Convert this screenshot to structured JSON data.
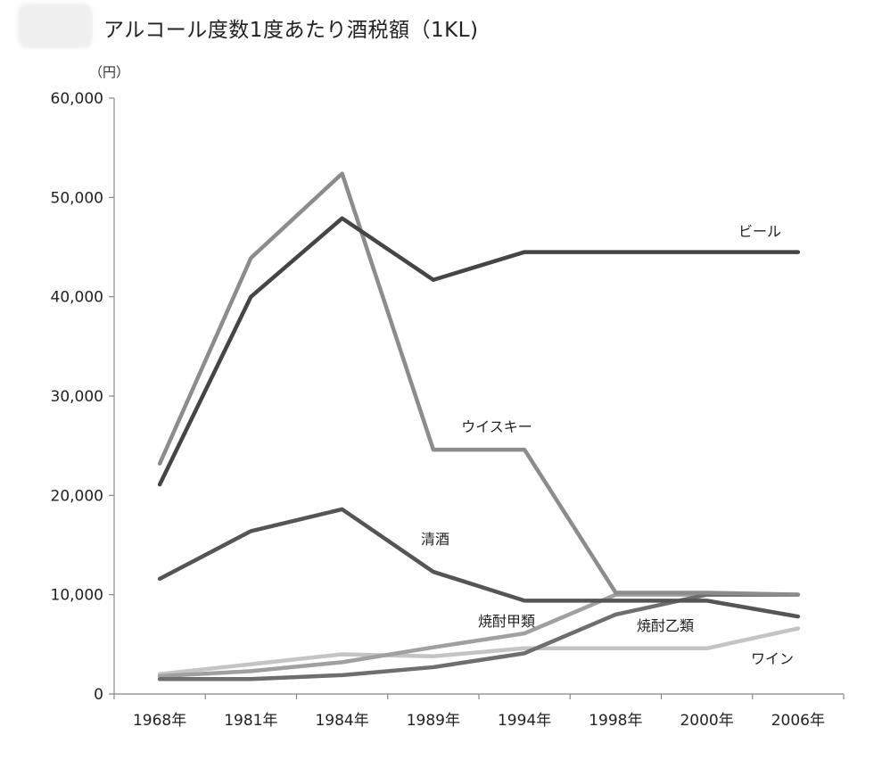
{
  "chart_data": {
    "type": "line",
    "title": "アルコール度数1度あたり酒税額（1KL)",
    "unit_label": "（円）",
    "categories": [
      "1968年",
      "1981年",
      "1984年",
      "1989年",
      "1994年",
      "1998年",
      "2000年",
      "2006年"
    ],
    "ylim": [
      0,
      60000
    ],
    "yticks": [
      "0",
      "10,000",
      "20,000",
      "30,000",
      "40,000",
      "50,000",
      "60,000"
    ],
    "grid": false,
    "series": [
      {
        "name": "ビール",
        "color": "#454545",
        "values": [
          21100,
          40000,
          47900,
          41700,
          44500,
          44500,
          44500,
          44500
        ]
      },
      {
        "name": "ウイスキー",
        "color": "#8c8c8c",
        "values": [
          23200,
          43900,
          52400,
          24600,
          24600,
          10200,
          10200,
          10000
        ]
      },
      {
        "name": "清酒",
        "color": "#555555",
        "values": [
          11600,
          16400,
          18600,
          12300,
          9400,
          9400,
          9400,
          7800
        ]
      },
      {
        "name": "焼酎甲類",
        "color": "#a0a0a0",
        "values": [
          1800,
          2300,
          3200,
          4700,
          6100,
          10000,
          10000,
          10000
        ]
      },
      {
        "name": "焼酎乙類",
        "color": "#6e6e6e",
        "values": [
          1500,
          1500,
          1900,
          2700,
          4100,
          8000,
          10000,
          10000
        ]
      },
      {
        "name": "ワイン",
        "color": "#c4c4c4",
        "values": [
          2000,
          3000,
          4000,
          3800,
          4600,
          4600,
          4600,
          6600
        ]
      }
    ]
  }
}
